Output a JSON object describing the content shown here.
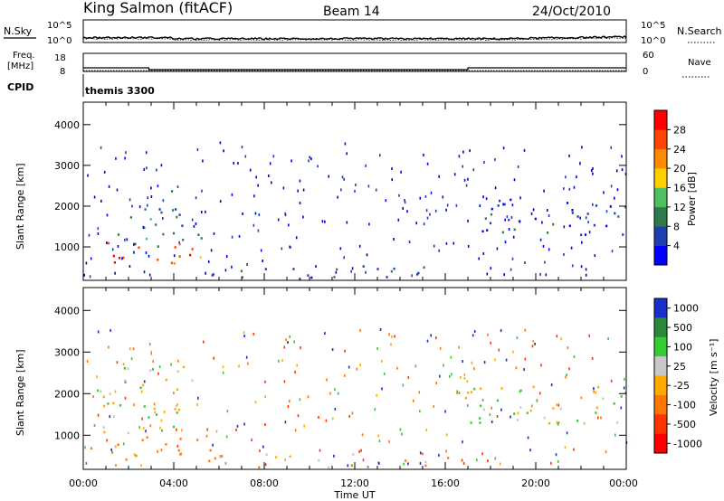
{
  "header": {
    "station": "King Salmon (fitACF)",
    "beam": "Beam 14",
    "date": "24/Oct/2010"
  },
  "top_panel": {
    "left_label": "N.Sky",
    "right_label": "N.Search",
    "left_ticks": [
      "10^5",
      "10^0"
    ],
    "right_ticks": [
      "10^5",
      "10^0"
    ]
  },
  "freq_panel": {
    "left_label_1": "Freq.",
    "left_label_2": "[MHz]",
    "left_ticks": [
      "18",
      "8"
    ],
    "right_label": "Nave",
    "right_ticks": [
      "60",
      "0"
    ]
  },
  "cpid_panel": {
    "label": "CPID",
    "value": "themis 3300"
  },
  "axes": {
    "ylabel": "Slant Range [km]",
    "xlabel": "Time UT",
    "xticks": [
      "00:00",
      "04:00",
      "08:00",
      "12:00",
      "16:00",
      "20:00",
      "00:00"
    ],
    "yticks": [
      "1000",
      "2000",
      "3000",
      "4000"
    ]
  },
  "colorbars": {
    "power": {
      "label": "Power [dB]",
      "ticks": [
        "4",
        "8",
        "12",
        "16",
        "20",
        "24",
        "28"
      ],
      "colors": [
        "#0000ff",
        "#1f3fb0",
        "#2f7a4a",
        "#4fbf5f",
        "#ffd000",
        "#ff8c00",
        "#ff4500",
        "#ff0000"
      ]
    },
    "velocity": {
      "label": "Velocity [m s⁻¹]",
      "ticks": [
        "1000",
        "500",
        "100",
        "25",
        "-25",
        "-100",
        "-500",
        "-1000"
      ],
      "colors": [
        "#1a2ecc",
        "#2a8a3a",
        "#33cc33",
        "#c8c8c8",
        "#ffaa00",
        "#ff7700",
        "#ff3300",
        "#ff0000"
      ]
    }
  },
  "chart_data": {
    "type": "heatmap",
    "title": "King Salmon (fitACF)   Beam 14   24/Oct/2010",
    "xlabel": "Time UT",
    "ylabel": "Slant Range [km]",
    "xlim_hours": [
      0,
      24
    ],
    "ylim_km": [
      180,
      4550
    ],
    "frequency_MHz": [
      {
        "start": 0.0,
        "end": 2.9,
        "value": 10.0
      },
      {
        "start": 2.9,
        "end": 17.0,
        "value": 9.0
      },
      {
        "start": 17.0,
        "end": 24.0,
        "value": 10.0
      }
    ],
    "nave_level": 3,
    "power_features": [
      {
        "t0": 0.3,
        "t1": 4.8,
        "r0": 500,
        "r1": 1200,
        "dB": 26
      },
      {
        "t0": 1.5,
        "t1": 4.5,
        "r0": 900,
        "r1": 2400,
        "dB": 10
      },
      {
        "t0": 5.0,
        "t1": 5.6,
        "r0": 250,
        "r1": 1400,
        "dB": 14
      },
      {
        "t0": 5.6,
        "t1": 17.0,
        "r0": 240,
        "r1": 600,
        "dB": 6
      },
      {
        "t0": 16.0,
        "t1": 24.0,
        "r0": 1300,
        "r1": 2200,
        "dB": 5
      }
    ],
    "velocity_features": [
      {
        "t0": 0.3,
        "t1": 4.5,
        "r0": 400,
        "r1": 1000,
        "v": -300
      },
      {
        "t0": 0.5,
        "t1": 5.0,
        "r0": 1000,
        "r1": 2800,
        "v": 0
      },
      {
        "t0": 5.0,
        "t1": 5.6,
        "r0": 400,
        "r1": 1400,
        "v": -400
      },
      {
        "t0": 5.6,
        "t1": 17.0,
        "r0": 240,
        "r1": 600,
        "v": -60
      },
      {
        "t0": 16.0,
        "t1": 24.0,
        "r0": 1300,
        "r1": 2200,
        "v": 0
      }
    ]
  }
}
